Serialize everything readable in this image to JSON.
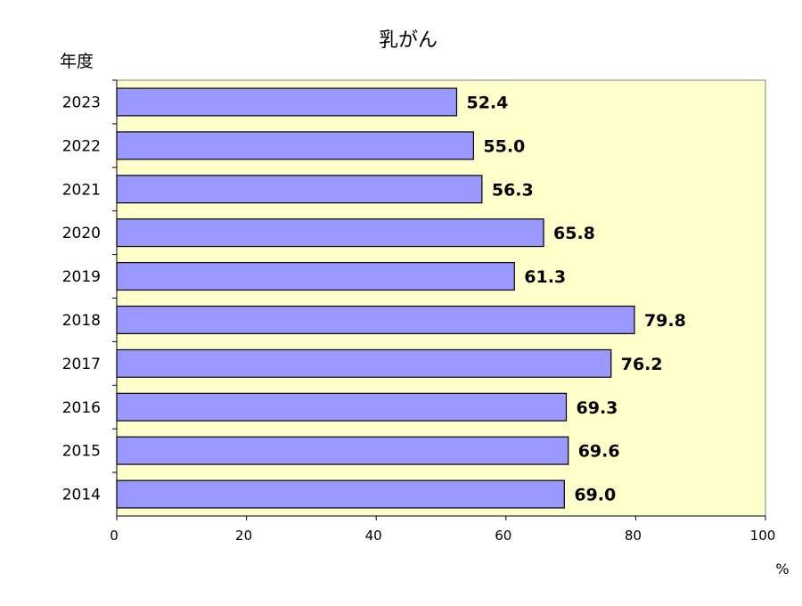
{
  "chart_data": {
    "type": "bar",
    "orientation": "horizontal",
    "title": "乳がん",
    "ylabel": "年度",
    "xlabel": "%",
    "categories": [
      "2023",
      "2022",
      "2021",
      "2020",
      "2019",
      "2018",
      "2017",
      "2016",
      "2015",
      "2014"
    ],
    "values": [
      52.4,
      55.0,
      56.3,
      65.8,
      61.3,
      79.8,
      76.2,
      69.3,
      69.6,
      69.0
    ],
    "value_labels": [
      "52.4",
      "55.0",
      "56.3",
      "65.8",
      "61.3",
      "79.8",
      "76.2",
      "69.3",
      "69.6",
      "69.0"
    ],
    "xlim": [
      0,
      100
    ],
    "xticks": [
      "0",
      "20",
      "40",
      "60",
      "80",
      "100"
    ],
    "grid": false,
    "colors": {
      "bar": "#9999ff",
      "plot_background": "#ffffcc",
      "border": "#000000"
    }
  }
}
